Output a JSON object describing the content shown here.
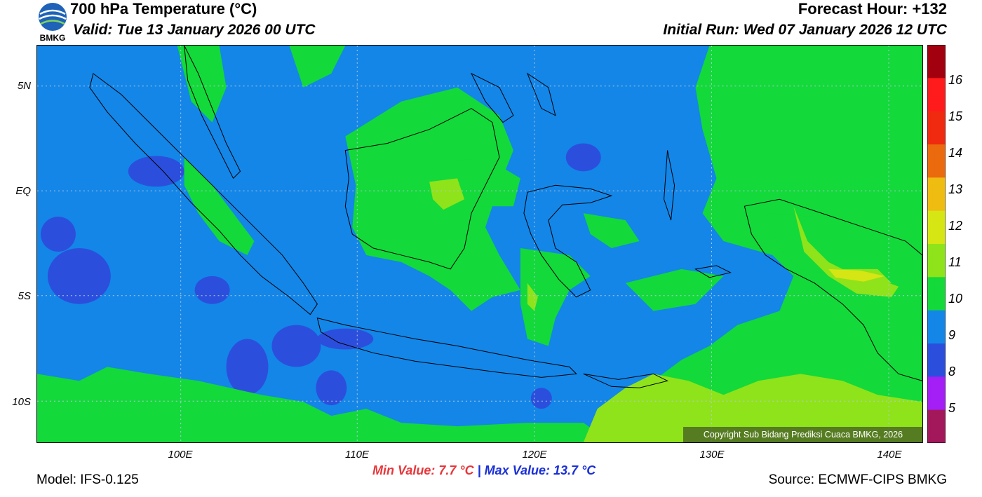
{
  "header": {
    "logo_text": "BMKG",
    "title": "700 hPa Temperature (°C)",
    "valid": "Valid: Tue 13 January 2026 00 UTC",
    "forecast_hour": "Forecast Hour: +132",
    "initial_run": "Initial Run: Wed 07 January 2026 12 UTC"
  },
  "map": {
    "lat_labels": [
      "5N",
      "EQ",
      "5S",
      "10S"
    ],
    "lon_labels": [
      "100E",
      "110E",
      "120E",
      "130E",
      "140E"
    ],
    "copyright": "Copyright Sub Bidang Prediksi Cuaca BMKG, 2026",
    "colors": {
      "c9": "#1386e8",
      "c10": "#13d93a",
      "c8": "#2b4fdc",
      "c11": "#8fe31a",
      "c12": "#d6e514",
      "coast": "#000000"
    }
  },
  "colorbar": {
    "labels": [
      "16",
      "15",
      "14",
      "13",
      "12",
      "11",
      "10",
      "9",
      "8",
      "5"
    ],
    "colors": [
      "#a3000f",
      "#ff1b1b",
      "#ef2a10",
      "#ec6a0e",
      "#efbc12",
      "#d6e514",
      "#8fe31a",
      "#13d93a",
      "#1386e8",
      "#2b4fdc",
      "#a31ff5",
      "#a3185a"
    ]
  },
  "footer": {
    "min_value": "Min Value: 7.7 °C",
    "separator": "|",
    "max_value": "Max Value: 13.7 °C",
    "model": "Model: IFS-0.125",
    "source": "Source: ECMWF-CIPS BMKG"
  }
}
